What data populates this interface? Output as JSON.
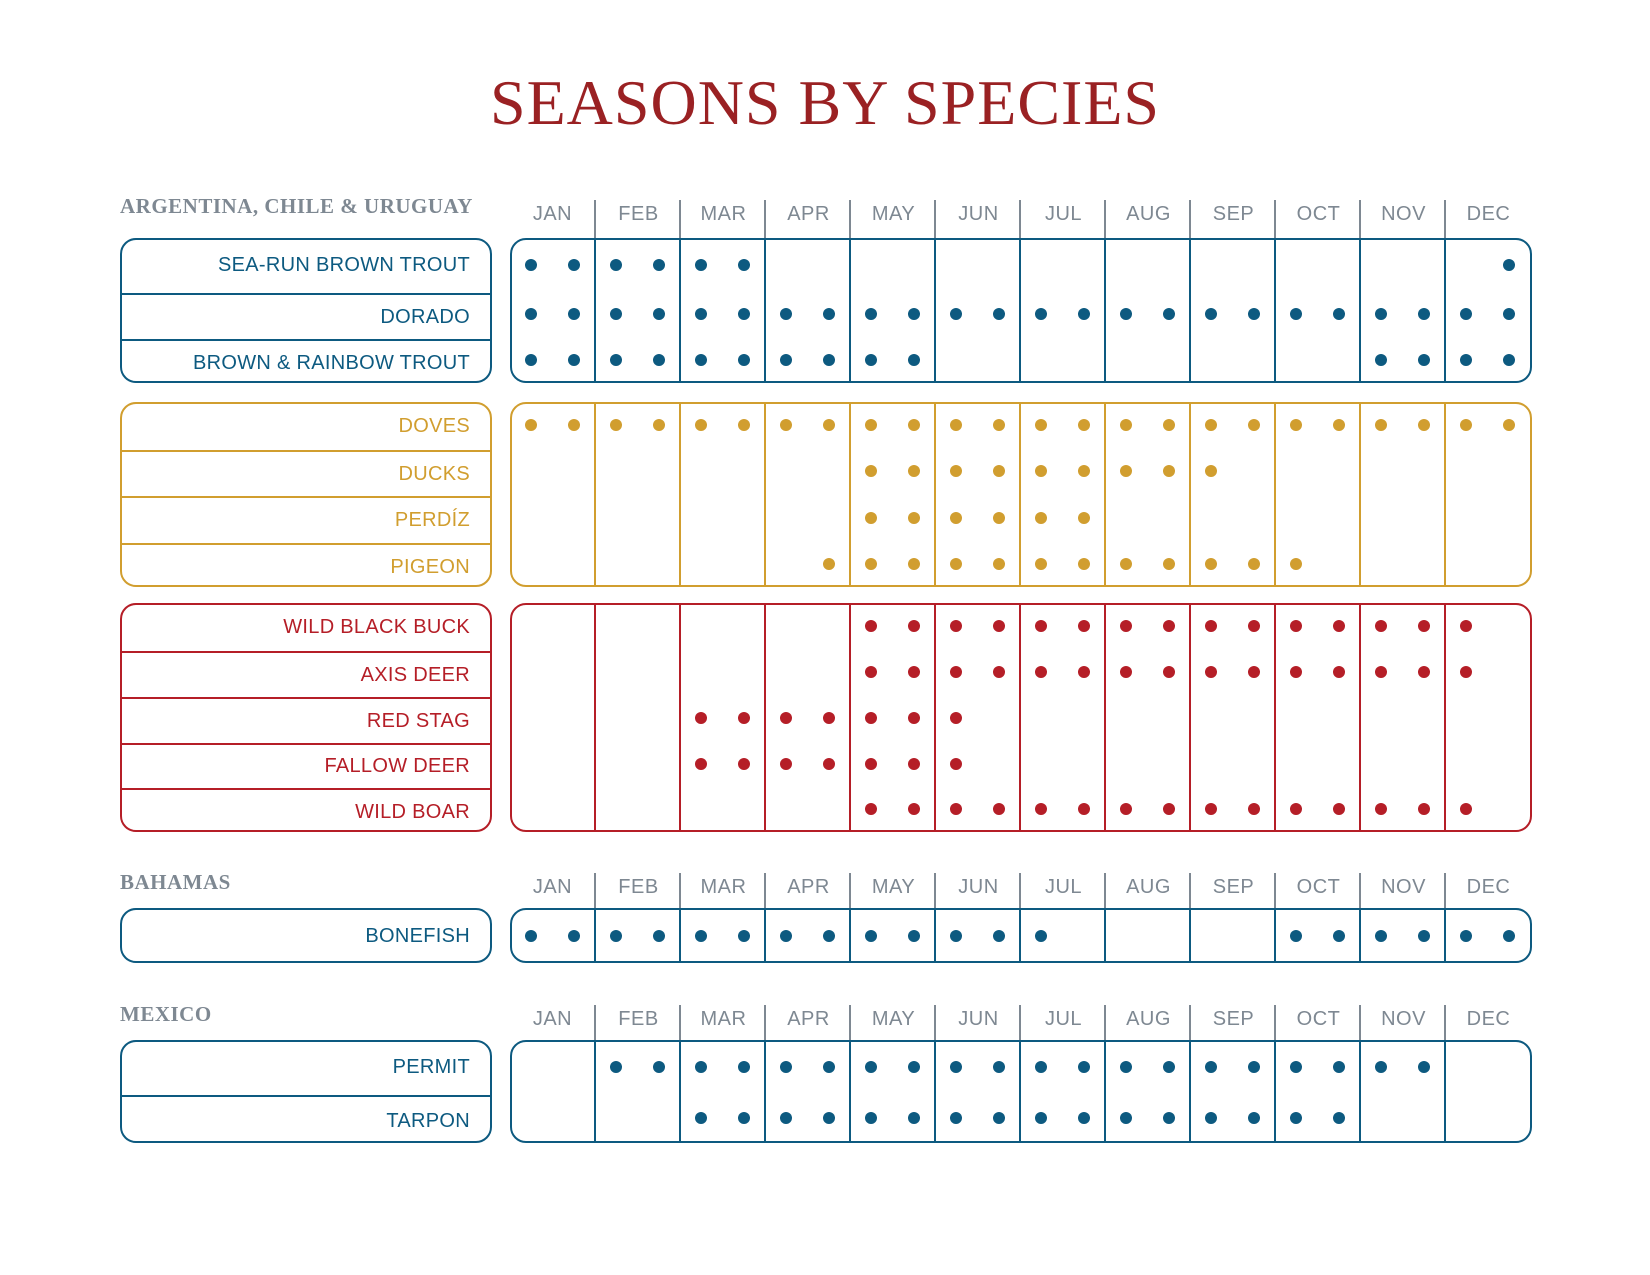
{
  "title": "SEASONS BY SPECIES",
  "colors": {
    "blue": "#0d5a80",
    "gold": "#d19e2f",
    "red": "#b51e27",
    "gray": "#7e8892",
    "title": "#9a2123"
  },
  "months": [
    "JAN",
    "FEB",
    "MAR",
    "APR",
    "MAY",
    "JUN",
    "JUL",
    "AUG",
    "SEP",
    "OCT",
    "NOV",
    "DEC"
  ],
  "regions": [
    {
      "name": "ARGENTINA, CHILE & URUGUAY",
      "groups": [
        {
          "color": "blue",
          "species": [
            {
              "name": "SEA-RUN BROWN TROUT",
              "halves": [
                0,
                1,
                2,
                3,
                4,
                5,
                23
              ]
            },
            {
              "name": "DORADO",
              "halves": [
                0,
                1,
                2,
                3,
                4,
                5,
                6,
                7,
                8,
                9,
                10,
                11,
                12,
                13,
                14,
                15,
                16,
                17,
                18,
                19,
                20,
                21,
                22,
                23
              ]
            },
            {
              "name": "BROWN & RAINBOW TROUT",
              "halves": [
                0,
                1,
                2,
                3,
                4,
                5,
                6,
                7,
                8,
                9,
                20,
                21,
                22,
                23
              ]
            }
          ]
        },
        {
          "color": "gold",
          "species": [
            {
              "name": "DOVES",
              "halves": [
                0,
                1,
                2,
                3,
                4,
                5,
                6,
                7,
                8,
                9,
                10,
                11,
                12,
                13,
                14,
                15,
                16,
                17,
                18,
                19,
                20,
                21,
                22,
                23
              ]
            },
            {
              "name": "DUCKS",
              "halves": [
                8,
                9,
                10,
                11,
                12,
                13,
                14,
                15,
                16
              ]
            },
            {
              "name": "PERDÍZ",
              "halves": [
                8,
                9,
                10,
                11,
                12,
                13
              ]
            },
            {
              "name": "PIGEON",
              "halves": [
                7,
                8,
                9,
                10,
                11,
                12,
                13,
                14,
                15,
                16,
                17,
                18
              ]
            }
          ]
        },
        {
          "color": "red",
          "species": [
            {
              "name": "WILD BLACK BUCK",
              "halves": [
                8,
                9,
                10,
                11,
                12,
                13,
                14,
                15,
                16,
                17,
                18,
                19,
                20,
                21,
                22
              ]
            },
            {
              "name": "AXIS DEER",
              "halves": [
                8,
                9,
                10,
                11,
                12,
                13,
                14,
                15,
                16,
                17,
                18,
                19,
                20,
                21,
                22
              ]
            },
            {
              "name": "RED STAG",
              "halves": [
                4,
                5,
                6,
                7,
                8,
                9,
                10
              ]
            },
            {
              "name": "FALLOW DEER",
              "halves": [
                4,
                5,
                6,
                7,
                8,
                9,
                10
              ]
            },
            {
              "name": "WILD BOAR",
              "halves": [
                8,
                9,
                10,
                11,
                12,
                13,
                14,
                15,
                16,
                17,
                18,
                19,
                20,
                21,
                22
              ]
            }
          ]
        }
      ]
    },
    {
      "name": "BAHAMAS",
      "groups": [
        {
          "color": "blue",
          "species": [
            {
              "name": "BONEFISH",
              "halves": [
                0,
                1,
                2,
                3,
                4,
                5,
                6,
                7,
                8,
                9,
                10,
                11,
                12,
                18,
                19,
                20,
                21,
                22,
                23
              ]
            }
          ]
        }
      ]
    },
    {
      "name": "MEXICO",
      "groups": [
        {
          "color": "blue",
          "species": [
            {
              "name": "PERMIT",
              "halves": [
                2,
                3,
                4,
                5,
                6,
                7,
                8,
                9,
                10,
                11,
                12,
                13,
                14,
                15,
                16,
                17,
                18,
                19,
                20,
                21
              ]
            },
            {
              "name": "TARPON",
              "halves": [
                4,
                5,
                6,
                7,
                8,
                9,
                10,
                11,
                12,
                13,
                14,
                15,
                16,
                17,
                18,
                19
              ]
            }
          ]
        }
      ]
    }
  ]
}
